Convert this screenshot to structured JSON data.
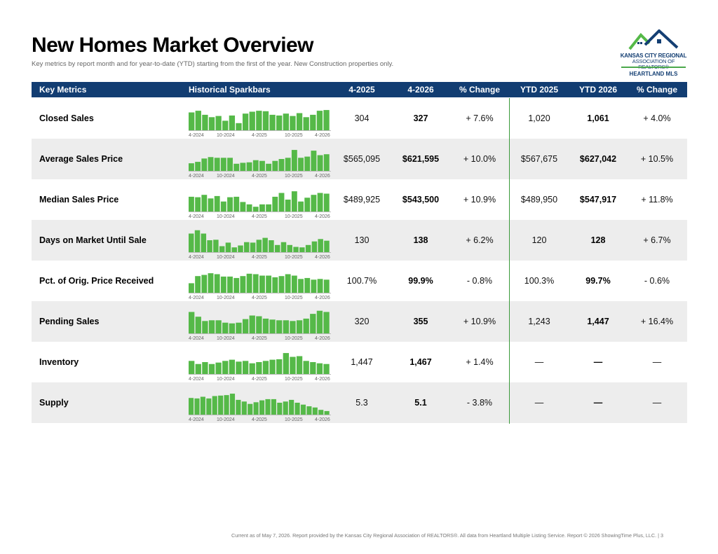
{
  "title": "New Homes Market Overview",
  "subtitle": "Key metrics by report month and for year-to-date (YTD) starting from the first of the year. New Construction properties only.",
  "logo": {
    "line1": "KANSAS CITY REGIONAL",
    "line2": "ASSOCIATION OF REALTORS®",
    "line3": "HEARTLAND MLS"
  },
  "colors": {
    "header_bg": "#123d72",
    "bar": "#55b948",
    "divider": "#3a9a3a",
    "alt_row": "#ededed"
  },
  "headers": [
    "Key Metrics",
    "Historical Sparkbars",
    "4-2025",
    "4-2026",
    "% Change",
    "YTD 2025",
    "YTD 2026",
    "% Change"
  ],
  "spark_ticks": [
    "4-2024",
    "10-2024",
    "4-2025",
    "10-2025",
    "4-2026"
  ],
  "rows": [
    {
      "metric": "Closed Sales",
      "v2025": "304",
      "v2026": "327",
      "change": "+ 7.6%",
      "ytd2025": "1,020",
      "ytd2026": "1,061",
      "ytd_change": "+ 4.0%",
      "spark": [
        0.75,
        0.82,
        0.65,
        0.55,
        0.6,
        0.4,
        0.62,
        0.3,
        0.7,
        0.78,
        0.82,
        0.8,
        0.65,
        0.62,
        0.7,
        0.6,
        0.72,
        0.55,
        0.65,
        0.82,
        0.85
      ]
    },
    {
      "metric": "Average Sales Price",
      "v2025": "$565,095",
      "v2026": "$621,595",
      "change": "+ 10.0%",
      "ytd2025": "$567,675",
      "ytd2026": "$627,042",
      "ytd_change": "+ 10.5%",
      "spark": [
        0.32,
        0.38,
        0.52,
        0.58,
        0.55,
        0.55,
        0.55,
        0.3,
        0.34,
        0.36,
        0.45,
        0.42,
        0.3,
        0.42,
        0.5,
        0.55,
        0.88,
        0.55,
        0.6,
        0.85,
        0.66,
        0.7
      ]
    },
    {
      "metric": "Median Sales Price",
      "v2025": "$489,925",
      "v2026": "$543,500",
      "change": "+ 10.9%",
      "ytd2025": "$489,950",
      "ytd2026": "$547,917",
      "ytd_change": "+ 11.8%",
      "spark": [
        0.62,
        0.6,
        0.7,
        0.55,
        0.65,
        0.42,
        0.6,
        0.62,
        0.4,
        0.3,
        0.2,
        0.3,
        0.3,
        0.62,
        0.78,
        0.5,
        0.85,
        0.42,
        0.58,
        0.7,
        0.78,
        0.75
      ]
    },
    {
      "metric": "Days on Market Until Sale",
      "v2025": "130",
      "v2026": "138",
      "change": "+ 6.2%",
      "ytd2025": "120",
      "ytd2026": "128",
      "ytd_change": "+ 6.7%",
      "spark": [
        0.78,
        0.92,
        0.78,
        0.5,
        0.52,
        0.25,
        0.4,
        0.2,
        0.28,
        0.42,
        0.4,
        0.52,
        0.6,
        0.5,
        0.3,
        0.42,
        0.3,
        0.22,
        0.2,
        0.3,
        0.45,
        0.55,
        0.48
      ]
    },
    {
      "metric": "Pct. of Orig. Price Received",
      "v2025": "100.7%",
      "v2026": "99.9%",
      "change": "- 0.8%",
      "ytd2025": "100.3%",
      "ytd2026": "99.7%",
      "ytd_change": "- 0.6%",
      "spark": [
        0.4,
        0.7,
        0.75,
        0.82,
        0.78,
        0.68,
        0.68,
        0.62,
        0.7,
        0.8,
        0.78,
        0.72,
        0.72,
        0.65,
        0.7,
        0.78,
        0.72,
        0.58,
        0.62,
        0.55,
        0.58,
        0.55
      ]
    },
    {
      "metric": "Pending Sales",
      "v2025": "320",
      "v2026": "355",
      "change": "+ 10.9%",
      "ytd2025": "1,243",
      "ytd2026": "1,447",
      "ytd_change": "+ 16.4%",
      "spark": [
        0.9,
        0.7,
        0.52,
        0.55,
        0.55,
        0.45,
        0.42,
        0.45,
        0.6,
        0.75,
        0.72,
        0.62,
        0.58,
        0.55,
        0.55,
        0.52,
        0.55,
        0.62,
        0.82,
        0.95,
        0.9
      ]
    },
    {
      "metric": "Inventory",
      "v2025": "1,447",
      "v2026": "1,467",
      "change": "+ 1.4%",
      "ytd2025": "—",
      "ytd2026": "—",
      "ytd_change": "—",
      "spark": [
        0.55,
        0.42,
        0.5,
        0.42,
        0.48,
        0.55,
        0.6,
        0.52,
        0.55,
        0.45,
        0.5,
        0.55,
        0.6,
        0.62,
        0.88,
        0.72,
        0.75,
        0.55,
        0.5,
        0.45,
        0.42
      ]
    },
    {
      "metric": "Supply",
      "v2025": "5.3",
      "v2026": "5.1",
      "change": "- 3.8%",
      "ytd2025": "—",
      "ytd2026": "—",
      "ytd_change": "—",
      "spark": [
        0.7,
        0.68,
        0.75,
        0.68,
        0.78,
        0.8,
        0.82,
        0.88,
        0.62,
        0.55,
        0.45,
        0.52,
        0.6,
        0.65,
        0.65,
        0.5,
        0.55,
        0.62,
        0.5,
        0.42,
        0.35,
        0.3,
        0.2,
        0.15
      ]
    }
  ],
  "footer": "Current as of May 7, 2026. Report provided by the Kansas City Regional Association of REALTORS®. All data from Heartland Multiple Listing Service. Report © 2026 ShowingTime Plus, LLC.  |  3"
}
